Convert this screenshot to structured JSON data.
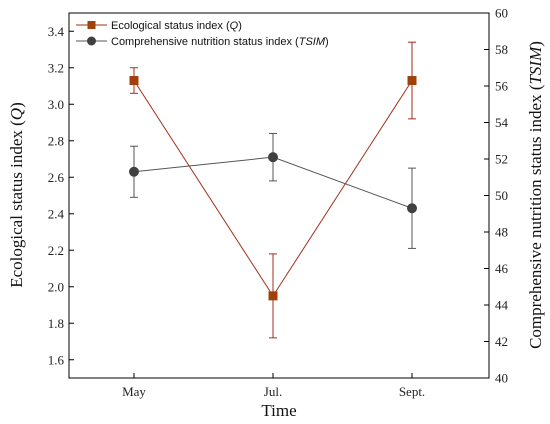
{
  "chart_data": {
    "type": "line",
    "categories": [
      "May",
      "Jul.",
      "Sept."
    ],
    "xlabel": "Time",
    "ylabel_left": "Ecological status index (Q)",
    "ylabel_right": "Comprehensive nutrition status index (TSIM)",
    "ylim_left": [
      1.5,
      3.5
    ],
    "ylim_right": [
      40,
      60
    ],
    "yticks_left": [
      "1.6",
      "1.8",
      "2.0",
      "2.2",
      "2.4",
      "2.6",
      "2.8",
      "3.0",
      "3.2",
      "3.4"
    ],
    "yticks_right": [
      "40",
      "42",
      "44",
      "46",
      "48",
      "50",
      "52",
      "54",
      "56",
      "58",
      "60"
    ],
    "legend_position": "top-left",
    "series": [
      {
        "name_prefix": "Ecological status index (",
        "name_italic": "Q",
        "name_suffix": ")",
        "axis": "left",
        "marker": "square",
        "color": "#a0301a",
        "marker_color": "#a0400a",
        "values": [
          3.13,
          1.95,
          3.13
        ],
        "errors": [
          0.07,
          0.23,
          0.21
        ]
      },
      {
        "name_prefix": "Comprehensive nutrition status index (",
        "name_italic": "TSIM",
        "name_suffix": ")",
        "axis": "right",
        "marker": "circle",
        "color": "#555555",
        "marker_color": "#404040",
        "values": [
          51.3,
          52.1,
          49.3
        ],
        "errors": [
          1.4,
          1.3,
          2.2
        ]
      }
    ]
  }
}
